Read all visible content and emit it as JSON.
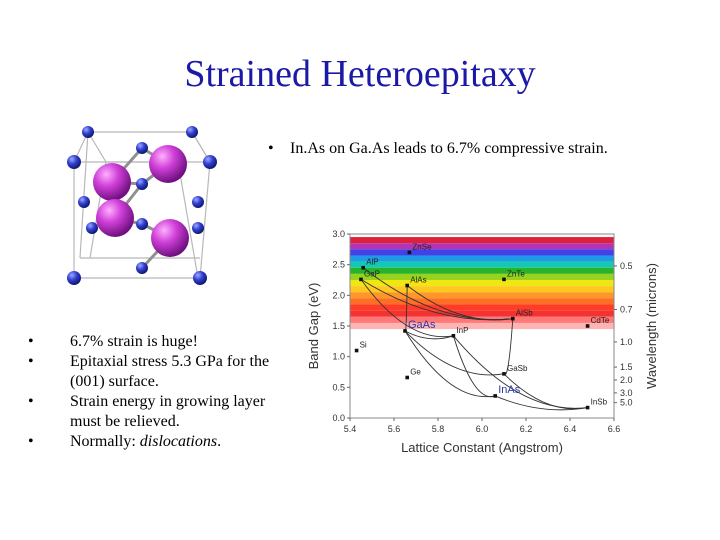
{
  "slide": {
    "title": "Strained Heteroepitaxy",
    "top_bullet": "In.As on Ga.As leads to 6.7% compressive strain.",
    "bullets": [
      {
        "plain": "6.7% strain is huge!",
        "italic": ""
      },
      {
        "plain": "Epitaxial stress 5.3 GPa for the (001) surface.",
        "italic": ""
      },
      {
        "plain": "Strain energy in growing layer must be relieved.",
        "italic": ""
      },
      {
        "plain": "Normally: ",
        "italic": "dislocations",
        "suffix": "."
      }
    ],
    "bullet_symbol": "•"
  },
  "chart_data": {
    "type": "scatter",
    "xlabel": "Lattice Constant (Angstrom)",
    "ylabel": "Band Gap (eV)",
    "y2label": "Wavelength (microns)",
    "xlim": [
      5.4,
      6.6
    ],
    "ylim": [
      0.0,
      3.0
    ],
    "xticks": [
      "5.4",
      "5.6",
      "5.8",
      "6.0",
      "6.2",
      "6.4",
      "6.6"
    ],
    "yticks": [
      "0.0",
      "0.5",
      "1.0",
      "1.5",
      "2.0",
      "2.5",
      "3.0"
    ],
    "y2ticks": [
      {
        "label": "0.5",
        "eV": 2.48
      },
      {
        "label": "0.7",
        "eV": 1.77
      },
      {
        "label": "1.0",
        "eV": 1.24
      },
      {
        "label": "1.5",
        "eV": 0.83
      },
      {
        "label": "2.0",
        "eV": 0.62
      },
      {
        "label": "3.0",
        "eV": 0.41
      },
      {
        "label": "5.0",
        "eV": 0.25
      }
    ],
    "points": [
      {
        "name": "ZnSe",
        "x": 5.67,
        "y": 2.7
      },
      {
        "name": "AlP",
        "x": 5.46,
        "y": 2.45
      },
      {
        "name": "GaP",
        "x": 5.45,
        "y": 2.26
      },
      {
        "name": "AlAs",
        "x": 5.66,
        "y": 2.16
      },
      {
        "name": "ZnTe",
        "x": 6.1,
        "y": 2.26
      },
      {
        "name": "AlSb",
        "x": 6.14,
        "y": 1.62
      },
      {
        "name": "CdTe",
        "x": 6.48,
        "y": 1.5
      },
      {
        "name": "GaAs",
        "x": 5.65,
        "y": 1.42
      },
      {
        "name": "InP",
        "x": 5.87,
        "y": 1.34
      },
      {
        "name": "Si",
        "x": 5.43,
        "y": 1.1
      },
      {
        "name": "GaSb",
        "x": 6.1,
        "y": 0.72
      },
      {
        "name": "Ge",
        "x": 5.66,
        "y": 0.66
      },
      {
        "name": "InAs",
        "x": 6.06,
        "y": 0.36
      },
      {
        "name": "InSb",
        "x": 6.48,
        "y": 0.17
      }
    ],
    "curves": [
      [
        "GaP",
        "InP",
        "InAs"
      ],
      [
        "GaAs",
        "InP"
      ],
      [
        "AlAs",
        "GaAs"
      ],
      [
        "AlAs",
        "AlSb"
      ],
      [
        "AlP",
        "AlSb"
      ],
      [
        "AlSb",
        "GaSb",
        "InSb"
      ],
      [
        "GaAs",
        "InAs"
      ],
      [
        "InAs",
        "InSb"
      ],
      [
        "GaAs",
        "GaSb"
      ],
      [
        "InP",
        "InSb"
      ],
      [
        "GaP",
        "AlSb"
      ]
    ],
    "spectrum_colors": [
      "#e0203a",
      "#b432b4",
      "#4141e6",
      "#1e9ae6",
      "#14c8b4",
      "#28b428",
      "#96d21e",
      "#f0e614",
      "#ffc81e",
      "#ff9628",
      "#ff6e28",
      "#ff3c28",
      "#f53232",
      "#ff7878",
      "#ffb4b4"
    ],
    "spectrum_range_eV": [
      1.45,
      2.95
    ]
  }
}
